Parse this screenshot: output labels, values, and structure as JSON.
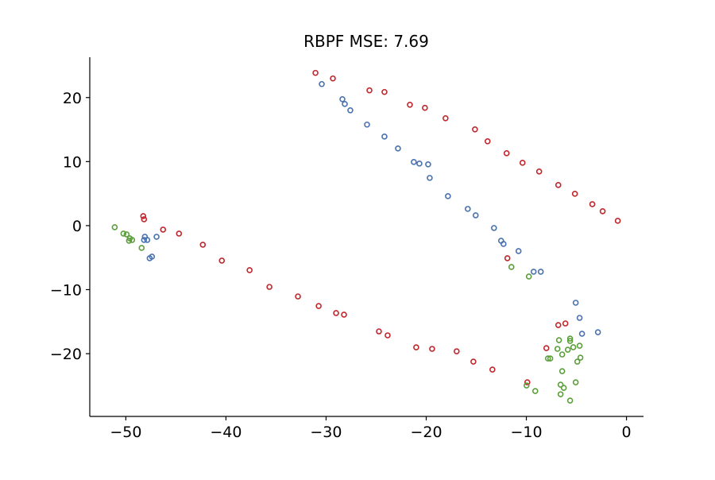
{
  "chart_data": {
    "type": "scatter",
    "title": "RBPF MSE: 7.69",
    "xlabel": "",
    "ylabel": "",
    "xlim": [
      -53.6,
      1.7
    ],
    "ylim": [
      -29.8,
      26.3
    ],
    "xticks": [
      -50,
      -40,
      -30,
      -20,
      -10,
      0
    ],
    "yticks": [
      -20,
      -10,
      0,
      10,
      20
    ],
    "xtick_labels": [
      "−50",
      "−40",
      "−30",
      "−20",
      "−10",
      "0"
    ],
    "ytick_labels": [
      "−20",
      "−10",
      "0",
      "10",
      "20"
    ],
    "grid": false,
    "marker": "open-circle",
    "series": [
      {
        "color": "#c0272d",
        "points": [
          [
            -31.06,
            23.85
          ],
          [
            -29.32,
            22.98
          ],
          [
            -25.67,
            21.12
          ],
          [
            -24.17,
            20.87
          ],
          [
            -21.63,
            18.88
          ],
          [
            -20.13,
            18.39
          ],
          [
            -18.07,
            16.77
          ],
          [
            -15.13,
            15.03
          ],
          [
            -13.87,
            13.17
          ],
          [
            -11.97,
            11.3
          ],
          [
            -10.38,
            9.81
          ],
          [
            -8.72,
            8.45
          ],
          [
            -6.81,
            6.34
          ],
          [
            -5.15,
            4.97
          ],
          [
            -3.41,
            3.35
          ],
          [
            -2.38,
            2.24
          ],
          [
            -0.87,
            0.75
          ],
          [
            -48.26,
            1.49
          ],
          [
            -48.18,
            0.99
          ],
          [
            -46.28,
            -0.62
          ],
          [
            -44.69,
            -1.24
          ],
          [
            -42.31,
            -2.98
          ],
          [
            -40.41,
            -5.47
          ],
          [
            -37.64,
            -6.96
          ],
          [
            -35.66,
            -9.57
          ],
          [
            -32.81,
            -11.06
          ],
          [
            -30.74,
            -12.55
          ],
          [
            -29.0,
            -13.66
          ],
          [
            -28.21,
            -13.91
          ],
          [
            -24.72,
            -16.52
          ],
          [
            -23.85,
            -17.14
          ],
          [
            -21.0,
            -19.01
          ],
          [
            -19.41,
            -19.25
          ],
          [
            -16.96,
            -19.63
          ],
          [
            -15.29,
            -21.24
          ],
          [
            -13.39,
            -22.48
          ],
          [
            -9.9,
            -24.47
          ],
          [
            -11.89,
            -5.09
          ],
          [
            -8.0,
            -19.13
          ],
          [
            -6.81,
            -15.53
          ],
          [
            -6.1,
            -15.28
          ]
        ]
      },
      {
        "color": "#4a72b0",
        "points": [
          [
            -30.43,
            22.11
          ],
          [
            -28.37,
            19.75
          ],
          [
            -28.13,
            19.0
          ],
          [
            -27.58,
            18.01
          ],
          [
            -25.91,
            15.78
          ],
          [
            -24.17,
            13.91
          ],
          [
            -22.82,
            12.05
          ],
          [
            -21.24,
            9.94
          ],
          [
            -20.68,
            9.69
          ],
          [
            -19.81,
            9.57
          ],
          [
            -19.65,
            7.45
          ],
          [
            -17.83,
            4.6
          ],
          [
            -15.85,
            2.61
          ],
          [
            -15.06,
            1.61
          ],
          [
            -13.23,
            -0.37
          ],
          [
            -12.52,
            -2.36
          ],
          [
            -12.28,
            -2.86
          ],
          [
            -10.78,
            -3.98
          ],
          [
            -9.27,
            -7.2
          ],
          [
            -8.56,
            -7.2
          ],
          [
            -48.1,
            -1.74
          ],
          [
            -47.86,
            -2.24
          ],
          [
            -48.18,
            -2.24
          ],
          [
            -46.93,
            -1.74
          ],
          [
            -47.39,
            -4.84
          ],
          [
            -47.62,
            -5.09
          ],
          [
            -5.07,
            -12.05
          ],
          [
            -4.68,
            -14.41
          ],
          [
            -4.44,
            -16.89
          ],
          [
            -2.85,
            -16.65
          ]
        ]
      },
      {
        "color": "#5c9e3c",
        "points": [
          [
            -51.11,
            -0.25
          ],
          [
            -50.24,
            -1.24
          ],
          [
            -49.92,
            -1.37
          ],
          [
            -49.6,
            -1.99
          ],
          [
            -49.68,
            -2.36
          ],
          [
            -49.37,
            -2.24
          ],
          [
            -48.42,
            -3.48
          ],
          [
            -11.49,
            -6.46
          ],
          [
            -9.75,
            -7.95
          ],
          [
            -6.74,
            -17.89
          ],
          [
            -5.63,
            -17.64
          ],
          [
            -5.63,
            -18.01
          ],
          [
            -4.68,
            -18.76
          ],
          [
            -5.31,
            -19.0
          ],
          [
            -4.91,
            -21.24
          ],
          [
            -4.6,
            -20.62
          ],
          [
            -5.86,
            -19.38
          ],
          [
            -6.42,
            -20.12
          ],
          [
            -6.89,
            -19.25
          ],
          [
            -7.84,
            -20.75
          ],
          [
            -7.61,
            -20.75
          ],
          [
            -6.42,
            -22.73
          ],
          [
            -9.98,
            -24.97
          ],
          [
            -9.11,
            -25.84
          ],
          [
            -6.58,
            -24.84
          ],
          [
            -6.26,
            -25.34
          ],
          [
            -6.58,
            -26.34
          ],
          [
            -5.63,
            -27.33
          ],
          [
            -5.07,
            -24.47
          ]
        ]
      }
    ]
  }
}
